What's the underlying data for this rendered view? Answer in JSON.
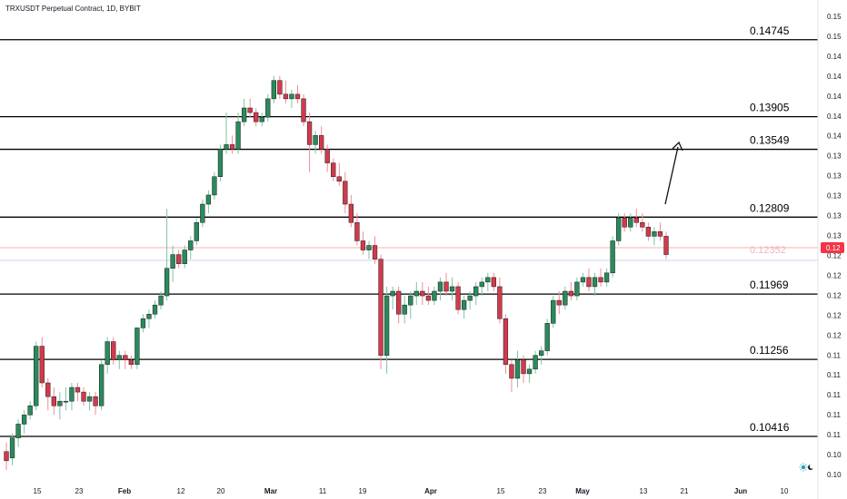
{
  "header": {
    "title": "TRXUSDT Perpetual Contract, 1D, BYBIT"
  },
  "chart_data": {
    "type": "candlestick",
    "title": "TRXUSDT Perpetual Contract, 1D, BYBIT",
    "x_tick_labels": [
      "15",
      "23",
      "Feb",
      "12",
      "20",
      "Mar",
      "11",
      "19",
      "Apr",
      "15",
      "23",
      "May",
      "13",
      "21",
      "Jun",
      "10"
    ],
    "y_tick_labels": [
      "0.15",
      "0.15",
      "0.14",
      "0.14",
      "0.14",
      "0.14",
      "0.14",
      "0.13",
      "0.13",
      "0.13",
      "0.13",
      "0.13",
      "0.12",
      "0.12",
      "0.12",
      "0.12",
      "0.12",
      "0.11",
      "0.11",
      "0.11",
      "0.11",
      "0.11",
      "0.10",
      "0.10"
    ],
    "ylim": [
      0.1,
      0.15
    ],
    "levels": [
      {
        "label": "0.14745",
        "value": 0.14745
      },
      {
        "label": "0.13905",
        "value": 0.13905
      },
      {
        "label": "0.13549",
        "value": 0.13549
      },
      {
        "label": "0.12809",
        "value": 0.12809
      },
      {
        "label": "0.11969",
        "value": 0.11969
      },
      {
        "label": "0.11256",
        "value": 0.11256
      },
      {
        "label": "0.10416",
        "value": 0.10416
      }
    ],
    "current_price_label": "0.12352",
    "last_price_badge": "0.12",
    "colors": {
      "up": "#2a8a5c",
      "down": "#d23a4b",
      "level": "#000000",
      "current": "#f7b0b4",
      "badge": "#f23645"
    },
    "candles": [
      [
        0.1025,
        0.1035,
        0.1005,
        0.1015
      ],
      [
        0.1018,
        0.1045,
        0.101,
        0.104
      ],
      [
        0.104,
        0.106,
        0.103,
        0.1055
      ],
      [
        0.1055,
        0.107,
        0.1045,
        0.1065
      ],
      [
        0.1065,
        0.108,
        0.106,
        0.1075
      ],
      [
        0.1075,
        0.1145,
        0.107,
        0.114
      ],
      [
        0.114,
        0.115,
        0.1095,
        0.11
      ],
      [
        0.11,
        0.1105,
        0.107,
        0.1085
      ],
      [
        0.1085,
        0.1095,
        0.1065,
        0.1075
      ],
      [
        0.1075,
        0.109,
        0.106,
        0.108
      ],
      [
        0.108,
        0.1095,
        0.107,
        0.108
      ],
      [
        0.108,
        0.11,
        0.107,
        0.1095
      ],
      [
        0.1095,
        0.11,
        0.108,
        0.109
      ],
      [
        0.109,
        0.1095,
        0.1075,
        0.108
      ],
      [
        0.108,
        0.109,
        0.107,
        0.1085
      ],
      [
        0.1085,
        0.109,
        0.1065,
        0.1075
      ],
      [
        0.1075,
        0.1125,
        0.107,
        0.112
      ],
      [
        0.112,
        0.115,
        0.111,
        0.1145
      ],
      [
        0.1145,
        0.115,
        0.112,
        0.1125
      ],
      [
        0.1125,
        0.1135,
        0.1115,
        0.113
      ],
      [
        0.113,
        0.1135,
        0.1115,
        0.1125
      ],
      [
        0.1125,
        0.113,
        0.1115,
        0.112
      ],
      [
        0.112,
        0.116,
        0.1115,
        0.116
      ],
      [
        0.116,
        0.1175,
        0.1155,
        0.117
      ],
      [
        0.117,
        0.118,
        0.116,
        0.1175
      ],
      [
        0.1175,
        0.119,
        0.117,
        0.1185
      ],
      [
        0.1185,
        0.12,
        0.118,
        0.1195
      ],
      [
        0.1195,
        0.129,
        0.119,
        0.1225
      ],
      [
        0.1225,
        0.125,
        0.121,
        0.124
      ],
      [
        0.124,
        0.1245,
        0.1225,
        0.123
      ],
      [
        0.123,
        0.125,
        0.1225,
        0.1245
      ],
      [
        0.1245,
        0.126,
        0.1235,
        0.1255
      ],
      [
        0.1255,
        0.128,
        0.125,
        0.1275
      ],
      [
        0.1275,
        0.13,
        0.127,
        0.1295
      ],
      [
        0.1295,
        0.131,
        0.1285,
        0.1305
      ],
      [
        0.1305,
        0.133,
        0.13,
        0.1325
      ],
      [
        0.1325,
        0.136,
        0.132,
        0.1355
      ],
      [
        0.1355,
        0.1395,
        0.135,
        0.136
      ],
      [
        0.136,
        0.137,
        0.135,
        0.1355
      ],
      [
        0.1355,
        0.1395,
        0.135,
        0.1385
      ],
      [
        0.1385,
        0.141,
        0.138,
        0.14
      ],
      [
        0.14,
        0.141,
        0.139,
        0.1395
      ],
      [
        0.1395,
        0.14,
        0.138,
        0.1385
      ],
      [
        0.1385,
        0.1395,
        0.138,
        0.139
      ],
      [
        0.139,
        0.1415,
        0.1385,
        0.141
      ],
      [
        0.141,
        0.1435,
        0.1405,
        0.143
      ],
      [
        0.143,
        0.1435,
        0.141,
        0.1415
      ],
      [
        0.1415,
        0.143,
        0.1405,
        0.141
      ],
      [
        0.141,
        0.142,
        0.14,
        0.1415
      ],
      [
        0.1415,
        0.1425,
        0.1405,
        0.141
      ],
      [
        0.141,
        0.1415,
        0.138,
        0.1385
      ],
      [
        0.1385,
        0.1395,
        0.133,
        0.136
      ],
      [
        0.136,
        0.1375,
        0.135,
        0.137
      ],
      [
        0.137,
        0.138,
        0.135,
        0.1355
      ],
      [
        0.1355,
        0.136,
        0.133,
        0.134
      ],
      [
        0.134,
        0.1345,
        0.132,
        0.1325
      ],
      [
        0.1325,
        0.134,
        0.1315,
        0.132
      ],
      [
        0.132,
        0.133,
        0.1285,
        0.1295
      ],
      [
        0.1295,
        0.1305,
        0.127,
        0.1275
      ],
      [
        0.1275,
        0.1285,
        0.125,
        0.1255
      ],
      [
        0.1255,
        0.1265,
        0.124,
        0.1245
      ],
      [
        0.1245,
        0.1255,
        0.1235,
        0.125
      ],
      [
        0.125,
        0.126,
        0.123,
        0.1235
      ],
      [
        0.1235,
        0.124,
        0.1115,
        0.113
      ],
      [
        0.113,
        0.1205,
        0.111,
        0.1195
      ],
      [
        0.1195,
        0.1205,
        0.118,
        0.12
      ],
      [
        0.12,
        0.1205,
        0.1165,
        0.1175
      ],
      [
        0.1175,
        0.1195,
        0.1165,
        0.1185
      ],
      [
        0.1185,
        0.12,
        0.117,
        0.1195
      ],
      [
        0.1195,
        0.121,
        0.1185,
        0.12
      ],
      [
        0.12,
        0.121,
        0.1185,
        0.1195
      ],
      [
        0.1195,
        0.1205,
        0.1185,
        0.119
      ],
      [
        0.119,
        0.1205,
        0.1185,
        0.12
      ],
      [
        0.12,
        0.1215,
        0.119,
        0.121
      ],
      [
        0.121,
        0.122,
        0.1195,
        0.12
      ],
      [
        0.12,
        0.1215,
        0.119,
        0.1205
      ],
      [
        0.1205,
        0.121,
        0.1175,
        0.118
      ],
      [
        0.118,
        0.1195,
        0.117,
        0.119
      ],
      [
        0.119,
        0.12,
        0.118,
        0.1195
      ],
      [
        0.1195,
        0.121,
        0.1185,
        0.1205
      ],
      [
        0.1205,
        0.1215,
        0.1195,
        0.121
      ],
      [
        0.121,
        0.122,
        0.12,
        0.1215
      ],
      [
        0.1215,
        0.122,
        0.12,
        0.1205
      ],
      [
        0.1205,
        0.1215,
        0.1165,
        0.117
      ],
      [
        0.117,
        0.1175,
        0.111,
        0.112
      ],
      [
        0.112,
        0.1125,
        0.109,
        0.1105
      ],
      [
        0.1105,
        0.1135,
        0.1095,
        0.1125
      ],
      [
        0.1125,
        0.113,
        0.11,
        0.111
      ],
      [
        0.111,
        0.112,
        0.11,
        0.1115
      ],
      [
        0.1115,
        0.1135,
        0.111,
        0.113
      ],
      [
        0.113,
        0.114,
        0.112,
        0.1135
      ],
      [
        0.1135,
        0.117,
        0.113,
        0.1165
      ],
      [
        0.1165,
        0.1195,
        0.116,
        0.119
      ],
      [
        0.119,
        0.12,
        0.1175,
        0.1185
      ],
      [
        0.1185,
        0.1205,
        0.118,
        0.12
      ],
      [
        0.12,
        0.121,
        0.119,
        0.1195
      ],
      [
        0.1195,
        0.1215,
        0.119,
        0.121
      ],
      [
        0.121,
        0.122,
        0.1205,
        0.1215
      ],
      [
        0.1215,
        0.1225,
        0.12,
        0.1205
      ],
      [
        0.1205,
        0.122,
        0.1195,
        0.1215
      ],
      [
        0.1215,
        0.1225,
        0.1205,
        0.121
      ],
      [
        0.121,
        0.1225,
        0.1205,
        0.122
      ],
      [
        0.122,
        0.126,
        0.1215,
        0.1255
      ],
      [
        0.1255,
        0.1285,
        0.125,
        0.128
      ],
      [
        0.128,
        0.1285,
        0.1265,
        0.127
      ],
      [
        0.127,
        0.1285,
        0.1265,
        0.128
      ],
      [
        0.128,
        0.129,
        0.127,
        0.1275
      ],
      [
        0.1275,
        0.1285,
        0.1265,
        0.127
      ],
      [
        0.127,
        0.1275,
        0.1255,
        0.126
      ],
      [
        0.126,
        0.127,
        0.125,
        0.1265
      ],
      [
        0.1265,
        0.1275,
        0.1255,
        0.126
      ],
      [
        0.126,
        0.1265,
        0.1235,
        0.124
      ]
    ]
  },
  "ui": {
    "top_scale_icon": "sun-moon-icon"
  }
}
